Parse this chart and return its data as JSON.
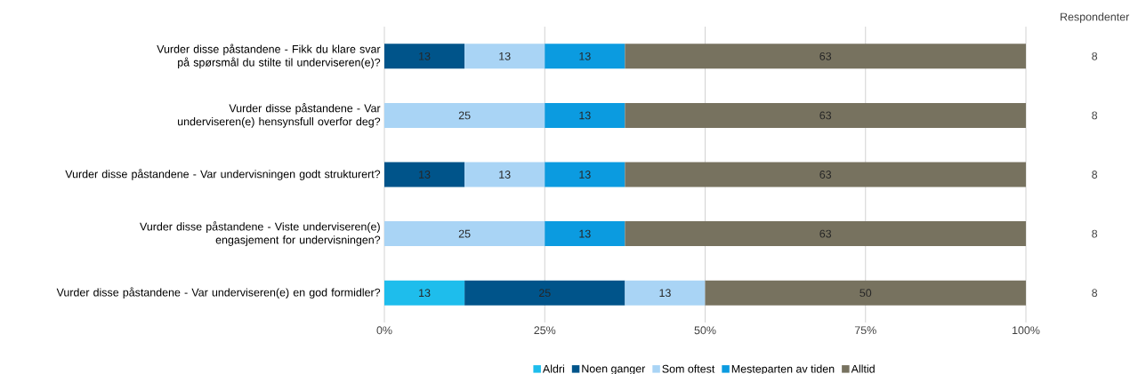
{
  "chart_data": {
    "type": "bar",
    "orientation": "horizontal",
    "stacked": true,
    "categories": [
      "Vurder disse påstandene - Fikk du klare svar på spørsmål du stilte til underviseren(e)?",
      "Vurder disse påstandene - Var underviseren(e) hensynsfull overfor deg?",
      "Vurder disse påstandene - Var undervisningen godt strukturert?",
      "Vurder disse påstandene - Viste underviseren(e) engasjement for undervisningen?",
      "Vurder disse påstandene - Var underviseren(e) en god formidler?"
    ],
    "series": [
      {
        "name": "Aldri",
        "color": "#1ebdec",
        "values": [
          0,
          0,
          0,
          0,
          12.5
        ],
        "value_labels": [
          null,
          null,
          null,
          null,
          "13"
        ]
      },
      {
        "name": "Noen ganger",
        "color": "#00548a",
        "values": [
          12.5,
          0,
          12.5,
          0,
          25
        ],
        "value_labels": [
          "13",
          null,
          "13",
          null,
          "25"
        ]
      },
      {
        "name": "Som oftest",
        "color": "#a9d4f5",
        "values": [
          12.5,
          25,
          12.5,
          25,
          12.5
        ],
        "value_labels": [
          "13",
          "25",
          "13",
          "25",
          "13"
        ]
      },
      {
        "name": "Mesteparten av tiden",
        "color": "#0b9be0",
        "values": [
          12.5,
          12.5,
          12.5,
          12.5,
          0
        ],
        "value_labels": [
          "13",
          "13",
          "13",
          "13",
          null
        ]
      },
      {
        "name": "Alltid",
        "color": "#77725f",
        "values": [
          62.5,
          62.5,
          62.5,
          62.5,
          50
        ],
        "value_labels": [
          "63",
          "63",
          "63",
          "63",
          "50"
        ]
      }
    ],
    "xlim": [
      0,
      100
    ],
    "xticks": [
      {
        "value": 0,
        "label": "0%"
      },
      {
        "value": 25,
        "label": "25%"
      },
      {
        "value": 50,
        "label": "50%"
      },
      {
        "value": 75,
        "label": "75%"
      },
      {
        "value": 100,
        "label": "100%"
      }
    ],
    "grid": "x",
    "legend": "bottom",
    "annotations": [
      "Respondenter",
      "8",
      "8",
      "8",
      "8",
      "8"
    ]
  }
}
